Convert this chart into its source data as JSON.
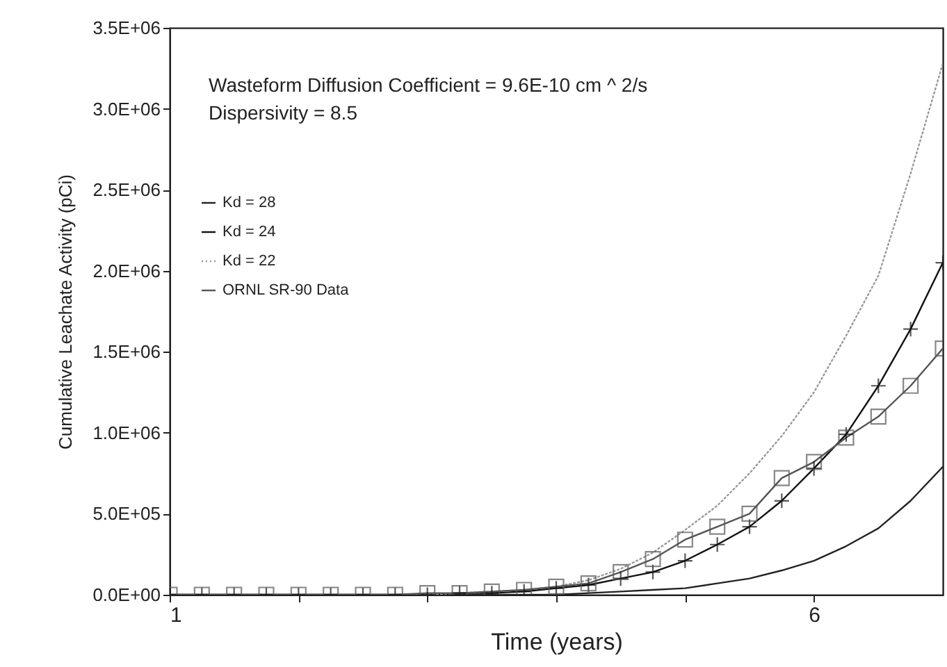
{
  "chart_data": {
    "type": "line",
    "xlabel": "Time (years)",
    "ylabel": "Cumulative Leachate Activity (pCi)",
    "annotations": [
      "Wasteform Diffusion Coefficient = 9.6E-10 cm ^ 2/s",
      "Dispersivity = 8.5"
    ],
    "x": [
      1,
      1.25,
      1.5,
      1.75,
      2,
      2.25,
      2.5,
      2.75,
      3,
      3.25,
      3.5,
      3.75,
      4,
      4.25,
      4.5,
      4.75,
      5,
      5.25,
      5.5,
      5.75,
      6,
      6.25,
      6.5,
      6.75,
      7
    ],
    "series": [
      {
        "name": "Kd = 28",
        "color": "#222222",
        "marker": "none",
        "line_style": "solid",
        "values": [
          0,
          0,
          0,
          0,
          0,
          0,
          0,
          0,
          0,
          0,
          0,
          0,
          0,
          10000,
          20000,
          30000,
          40000,
          70000,
          100000,
          150000,
          210000,
          300000,
          410000,
          580000,
          790000
        ]
      },
      {
        "name": "Kd = 24",
        "color": "#111111",
        "marker": "cross",
        "line_style": "solid",
        "values": [
          0,
          0,
          0,
          0,
          0,
          0,
          0,
          0,
          0,
          10000,
          10000,
          20000,
          40000,
          60000,
          100000,
          140000,
          210000,
          310000,
          420000,
          580000,
          780000,
          990000,
          1290000,
          1640000,
          2050000
        ]
      },
      {
        "name": "Kd = 22",
        "color": "#999999",
        "marker": "none",
        "line_style": "dotted",
        "values": [
          0,
          0,
          0,
          0,
          0,
          0,
          0,
          0,
          0,
          10000,
          20000,
          30000,
          50000,
          90000,
          160000,
          260000,
          400000,
          550000,
          750000,
          980000,
          1250000,
          1600000,
          1970000,
          2600000,
          3280000
        ]
      },
      {
        "name": "ORNL SR-90 Data",
        "color": "#555555",
        "marker": "square",
        "line_style": "solid",
        "values": [
          0,
          0,
          0,
          0,
          0,
          0,
          0,
          0,
          10000,
          10000,
          20000,
          30000,
          50000,
          70000,
          140000,
          220000,
          340000,
          420000,
          500000,
          720000,
          820000,
          970000,
          1100000,
          1290000,
          1520000
        ]
      }
    ],
    "xlim": [
      1,
      7
    ],
    "xticks": [
      1,
      {
        "value": 2,
        "label": null
      },
      {
        "value": 3,
        "label": null
      },
      {
        "value": 4,
        "label": null
      },
      {
        "value": 5,
        "label": null
      },
      6
    ],
    "ylim": [
      0,
      3500000
    ],
    "yticks": [
      {
        "value": 0,
        "label": "0.0E+00"
      },
      {
        "value": 500000,
        "label": "5.0E+05"
      },
      {
        "value": 1000000,
        "label": "1.0E+06"
      },
      {
        "value": 1500000,
        "label": "1.5E+06"
      },
      {
        "value": 2000000,
        "label": "2.0E+06"
      },
      {
        "value": 2500000,
        "label": "2.5E+06"
      },
      {
        "value": 3000000,
        "label": "3.0E+06"
      },
      {
        "value": 3500000,
        "label": "3.5E+06"
      }
    ],
    "grid": false,
    "legend": "top left"
  }
}
